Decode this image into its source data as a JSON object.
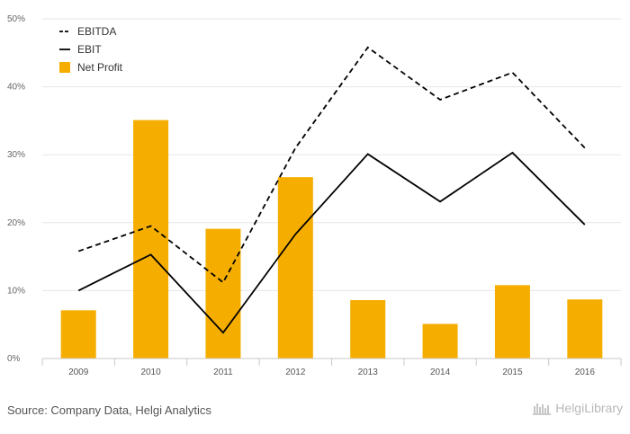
{
  "chart_data": {
    "type": "bar",
    "categories": [
      "2009",
      "2010",
      "2011",
      "2012",
      "2013",
      "2014",
      "2015",
      "2016"
    ],
    "ylim": [
      0,
      50
    ],
    "y_ticks": [
      "0%",
      "10%",
      "20%",
      "30%",
      "40%",
      "50%"
    ],
    "y_tick_values": [
      0,
      10,
      20,
      30,
      40,
      50
    ],
    "grid": true,
    "legend_position": "top-left",
    "series": [
      {
        "name": "EBITDA",
        "type": "line",
        "style": "dashed",
        "color": "#000000",
        "values": [
          15.8,
          19.5,
          11.2,
          31.0,
          45.8,
          38.1,
          42.1,
          31.0
        ]
      },
      {
        "name": "EBIT",
        "type": "line",
        "style": "solid",
        "color": "#000000",
        "values": [
          10.0,
          15.3,
          3.8,
          18.3,
          30.1,
          23.1,
          30.3,
          19.7
        ]
      },
      {
        "name": "Net Profit",
        "type": "bar",
        "color": "#f5ae00",
        "values": [
          7.1,
          35.1,
          19.1,
          26.7,
          8.6,
          5.1,
          10.8,
          8.7
        ]
      }
    ]
  },
  "footer": {
    "source": "Source: Company Data, Helgi Analytics",
    "brand": "HelgiLibrary"
  }
}
